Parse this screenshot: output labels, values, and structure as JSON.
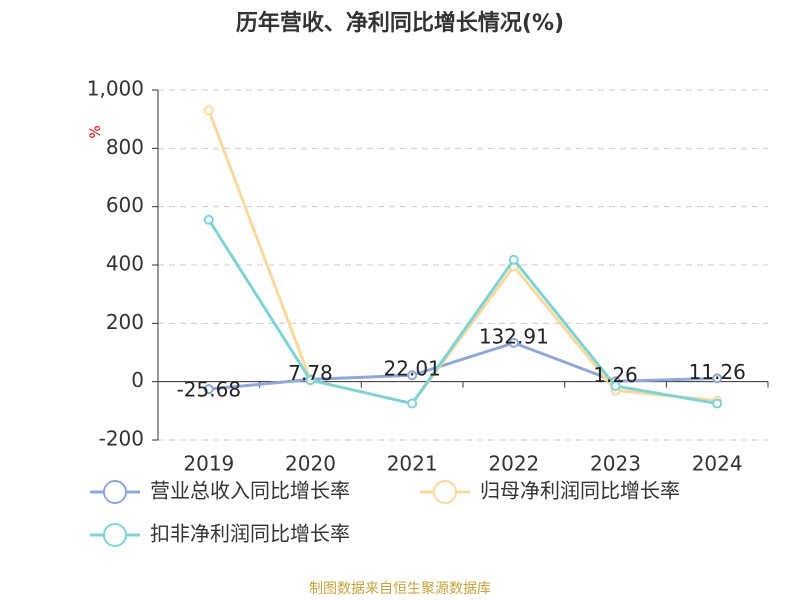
{
  "chart_data": {
    "type": "line",
    "title": "历年营收、净利同比增长情况(%)",
    "y_label": "%",
    "source": "制图数据来自恒生聚源数据库",
    "categories": [
      "2019",
      "2020",
      "2021",
      "2022",
      "2023",
      "2024"
    ],
    "series": [
      {
        "name": "营业总收入同比增长率",
        "color": "#91a7d6",
        "values": [
          -25.68,
          7.78,
          22.01,
          132.91,
          1.26,
          11.26
        ],
        "show_labels": true
      },
      {
        "name": "归母净利润同比增长率",
        "color": "#fbd89e",
        "values": [
          930,
          5,
          -75,
          395,
          -30,
          -65
        ]
      },
      {
        "name": "扣非净利润同比增长率",
        "color": "#7fd3d4",
        "values": [
          555,
          5,
          -75,
          418,
          -15,
          -75
        ]
      }
    ],
    "ylim": [
      -200,
      1000
    ],
    "yticks": [
      -200,
      0,
      200,
      400,
      600,
      800,
      {
        "value": 1000,
        "label": "1,000"
      }
    ],
    "grid": true
  }
}
